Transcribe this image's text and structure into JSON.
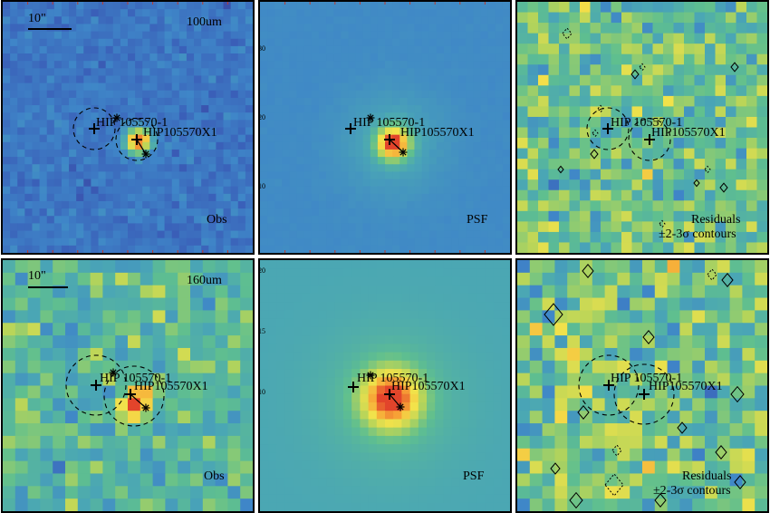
{
  "panels": {
    "obs100": {
      "band_label": "100um",
      "scale_label": "10\"",
      "corner_label": "Obs"
    },
    "psf100": {
      "corner_label": "PSF",
      "ticks": [
        "30",
        "20",
        "10"
      ]
    },
    "res100": {
      "corner_label_1": "Residuals",
      "corner_label_2": "±2-3σ contours"
    },
    "obs160": {
      "band_label": "160um",
      "scale_label": "10\"",
      "corner_label": "Obs"
    },
    "psf160": {
      "corner_label": "PSF",
      "ticks": [
        "20",
        "15",
        "10"
      ]
    },
    "res160": {
      "corner_label_1": "Residuals",
      "corner_label_2": "±2-3σ contours"
    }
  },
  "sources": {
    "primary": "HIP 105570-1",
    "secondary": "HIP105570X1"
  },
  "colormap": [
    "#3b1e7a",
    "#3a5fb8",
    "#3f86c8",
    "#4aa6b5",
    "#5fbf8f",
    "#b5d45a",
    "#f3e24a",
    "#f7a336",
    "#e2442b"
  ]
}
